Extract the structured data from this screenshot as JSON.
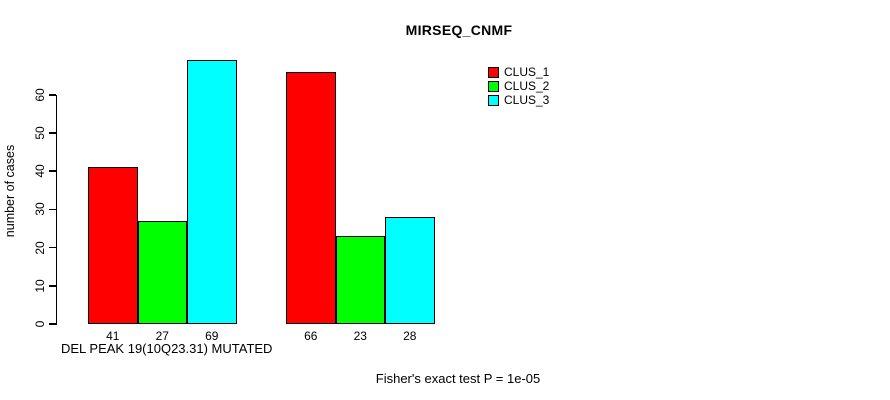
{
  "chart_data": {
    "type": "bar",
    "title": "MIRSEQ_CNMF",
    "ylabel": "number of cases",
    "xlabel": "DEL PEAK 19(10Q23.31) MUTATED",
    "annotation": "Fisher's exact test P = 1e-05",
    "ylim": [
      0,
      70
    ],
    "yticks": [
      0,
      10,
      20,
      30,
      40,
      50,
      60
    ],
    "grid": false,
    "legend_position": "top-right",
    "show_values_under_bars": true,
    "groups": 2,
    "series": [
      {
        "name": "CLUS_1",
        "color": "#ff0000",
        "values": [
          41,
          66
        ]
      },
      {
        "name": "CLUS_2",
        "color": "#00ff00",
        "values": [
          27,
          23
        ]
      },
      {
        "name": "CLUS_3",
        "color": "#00ffff",
        "values": [
          69,
          28
        ]
      }
    ]
  }
}
